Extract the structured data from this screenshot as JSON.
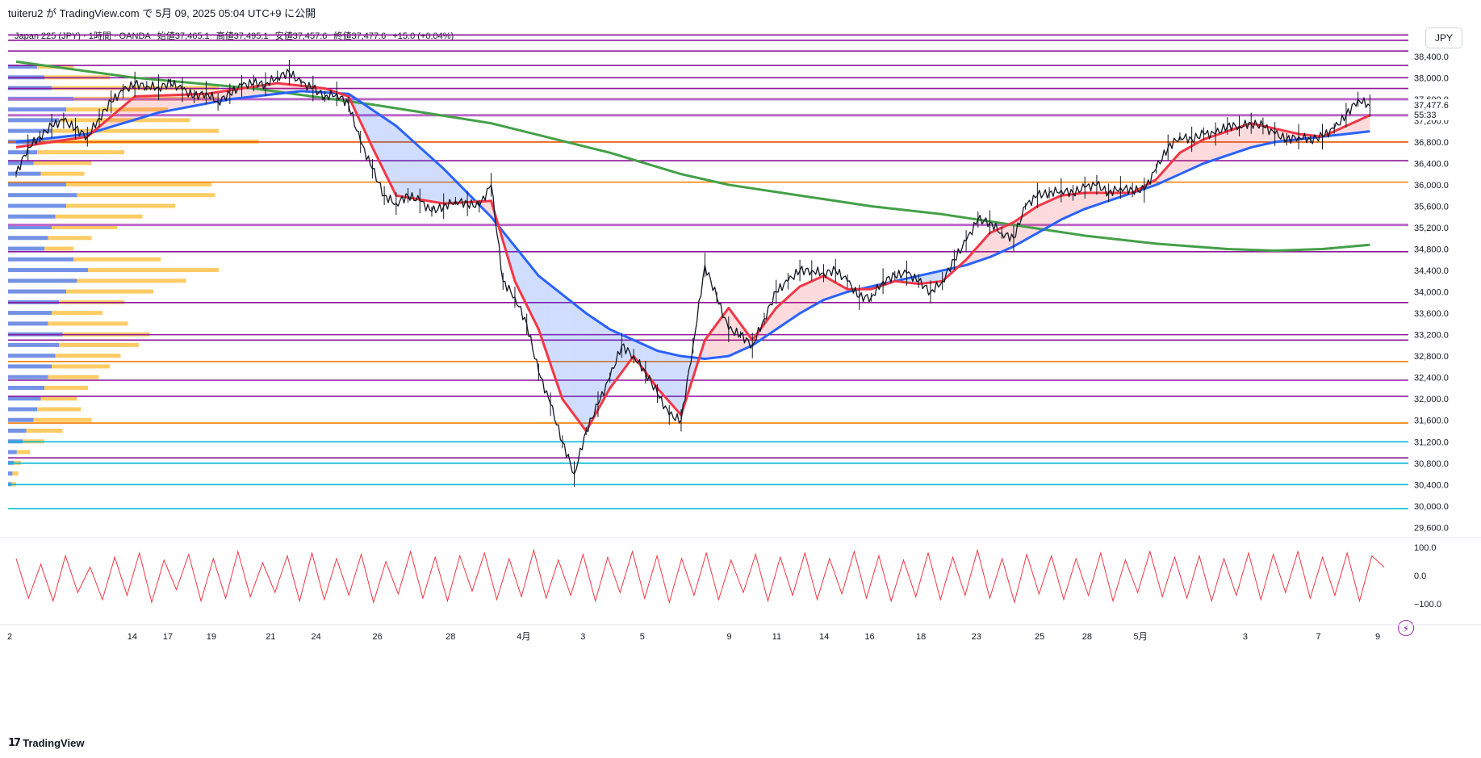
{
  "header": {
    "published": "tuiteru2 が TradingView.com で 5月 09, 2025 05:04 UTC+9 に公開",
    "symbol": "Japan 225 (JPY) · 1時間 · OANDA",
    "open": "始値37,465.1",
    "high": "高値37,495.1",
    "low": "安値37,457.6",
    "close": "終値37,477.6",
    "change": "+15.0 (+0.04%)",
    "currency": "JPY"
  },
  "price_badges": {
    "last_price": "37,477.6",
    "countdown": "55:33"
  },
  "footer": {
    "brand": "TradingView"
  },
  "colors": {
    "candle": "#131722",
    "ma_fast": "#f23645",
    "ma_slow": "#2962ff",
    "ma_long": "#43a047",
    "level_purple": "#8e1599",
    "level_orange": "#f57c00",
    "level_cyan": "#00bcd4",
    "level_red": "#e65100",
    "vp_blue": "#5b7fe0",
    "vp_orange": "#ffc24a",
    "oscillator": "#f23645"
  },
  "chart_data": {
    "type": "candlestick",
    "title": "Japan 225 (JPY) 1時間",
    "x_ticks": [
      "2",
      "14",
      "17",
      "19",
      "21",
      "24",
      "26",
      "28",
      "4月",
      "3",
      "5",
      "9",
      "11",
      "14",
      "16",
      "18",
      "23",
      "25",
      "28",
      "5月",
      "3",
      "7",
      "9"
    ],
    "y_ticks": [
      "38,400.0",
      "38,000.0",
      "37,600.0",
      "37,200.0",
      "36,800.0",
      "36,400.0",
      "36,000.0",
      "35,600.0",
      "35,200.0",
      "34,800.0",
      "34,400.0",
      "34,000.0",
      "33,600.0",
      "33,200.0",
      "32,800.0",
      "32,400.0",
      "32,000.0",
      "31,600.0",
      "31,200.0",
      "30,800.0",
      "30,400.0",
      "30,000.0",
      "29,600.0"
    ],
    "ylim": [
      29500,
      39000
    ],
    "price_series": [
      [
        0,
        36200
      ],
      [
        0.5,
        36700
      ],
      [
        1,
        36900
      ],
      [
        1.5,
        37100
      ],
      [
        2,
        37200
      ],
      [
        2.5,
        37050
      ],
      [
        3,
        36900
      ],
      [
        3.5,
        37250
      ],
      [
        4,
        37550
      ],
      [
        4.5,
        37750
      ],
      [
        5,
        37880
      ],
      [
        5.5,
        37850
      ],
      [
        6,
        37820
      ],
      [
        6.5,
        37900
      ],
      [
        7,
        37780
      ],
      [
        7.5,
        37650
      ],
      [
        8,
        37720
      ],
      [
        8.5,
        37550
      ],
      [
        9,
        37700
      ],
      [
        9.5,
        37850
      ],
      [
        10,
        37900
      ],
      [
        10.5,
        37880
      ],
      [
        11,
        38020
      ],
      [
        11.5,
        38100
      ],
      [
        12,
        37900
      ],
      [
        12.5,
        37800
      ],
      [
        13,
        37650
      ],
      [
        13.5,
        37700
      ],
      [
        14,
        37500
      ],
      [
        14.5,
        36800
      ],
      [
        15,
        36300
      ],
      [
        15.5,
        35800
      ],
      [
        16,
        35650
      ],
      [
        16.5,
        35800
      ],
      [
        17,
        35700
      ],
      [
        17.5,
        35500
      ],
      [
        18,
        35600
      ],
      [
        18.5,
        35700
      ],
      [
        19,
        35650
      ],
      [
        19.5,
        35600
      ],
      [
        20,
        36000
      ],
      [
        20.5,
        34200
      ],
      [
        21,
        33900
      ],
      [
        21.5,
        33400
      ],
      [
        22,
        32500
      ],
      [
        22.5,
        31900
      ],
      [
        23,
        31200
      ],
      [
        23.5,
        30600
      ],
      [
        24,
        31400
      ],
      [
        24.5,
        31900
      ],
      [
        25,
        32400
      ],
      [
        25.5,
        33000
      ],
      [
        26,
        32800
      ],
      [
        26.5,
        32500
      ],
      [
        27,
        32100
      ],
      [
        27.5,
        31700
      ],
      [
        28,
        31600
      ],
      [
        28.5,
        33000
      ],
      [
        29,
        34500
      ],
      [
        29.5,
        33900
      ],
      [
        30,
        33300
      ],
      [
        30.5,
        33200
      ],
      [
        31,
        33000
      ],
      [
        31.5,
        33500
      ],
      [
        32,
        34000
      ],
      [
        32.5,
        34200
      ],
      [
        33,
        34400
      ],
      [
        33.5,
        34400
      ],
      [
        34,
        34350
      ],
      [
        34.5,
        34400
      ],
      [
        35,
        34200
      ],
      [
        35.5,
        33900
      ],
      [
        36,
        33900
      ],
      [
        36.5,
        34200
      ],
      [
        37,
        34300
      ],
      [
        37.5,
        34350
      ],
      [
        38,
        34200
      ],
      [
        38.5,
        34000
      ],
      [
        39,
        34200
      ],
      [
        39.5,
        34600
      ],
      [
        40,
        34950
      ],
      [
        40.5,
        35350
      ],
      [
        41,
        35300
      ],
      [
        41.5,
        35100
      ],
      [
        42,
        35000
      ],
      [
        42.5,
        35600
      ],
      [
        43,
        35800
      ],
      [
        43.5,
        35850
      ],
      [
        44,
        35900
      ],
      [
        44.5,
        35850
      ],
      [
        45,
        35950
      ],
      [
        45.5,
        36000
      ],
      [
        46,
        35850
      ],
      [
        46.5,
        35950
      ],
      [
        47,
        35900
      ],
      [
        47.5,
        35900
      ],
      [
        48,
        36300
      ],
      [
        48.5,
        36700
      ],
      [
        49,
        36900
      ],
      [
        49.5,
        36850
      ],
      [
        50,
        36950
      ],
      [
        50.5,
        36950
      ],
      [
        51,
        37100
      ],
      [
        51.5,
        37100
      ],
      [
        52,
        37150
      ],
      [
        52.5,
        37100
      ],
      [
        53,
        36950
      ],
      [
        53.5,
        36850
      ],
      [
        54,
        36900
      ],
      [
        54.5,
        36850
      ],
      [
        55,
        36900
      ],
      [
        55.5,
        37050
      ],
      [
        56,
        37300
      ],
      [
        56.5,
        37600
      ],
      [
        57,
        37477.6
      ]
    ],
    "ma_fast": [
      [
        0,
        36700
      ],
      [
        3,
        36900
      ],
      [
        5,
        37650
      ],
      [
        8,
        37700
      ],
      [
        11,
        37900
      ],
      [
        13,
        37800
      ],
      [
        14,
        37650
      ],
      [
        15,
        36700
      ],
      [
        16,
        35800
      ],
      [
        18,
        35650
      ],
      [
        20,
        35700
      ],
      [
        21,
        34200
      ],
      [
        22,
        33300
      ],
      [
        23,
        32000
      ],
      [
        24,
        31400
      ],
      [
        25,
        32200
      ],
      [
        26,
        32800
      ],
      [
        27,
        32200
      ],
      [
        28,
        31700
      ],
      [
        29,
        33100
      ],
      [
        30,
        33700
      ],
      [
        31,
        33100
      ],
      [
        32,
        33700
      ],
      [
        33,
        34100
      ],
      [
        34,
        34300
      ],
      [
        35,
        34050
      ],
      [
        36,
        34050
      ],
      [
        37,
        34200
      ],
      [
        38,
        34150
      ],
      [
        39,
        34200
      ],
      [
        40,
        34600
      ],
      [
        41,
        35100
      ],
      [
        42,
        35300
      ],
      [
        43,
        35600
      ],
      [
        44,
        35800
      ],
      [
        45,
        35850
      ],
      [
        46,
        35850
      ],
      [
        47,
        35850
      ],
      [
        48,
        36100
      ],
      [
        49,
        36600
      ],
      [
        50,
        36850
      ],
      [
        51,
        37000
      ],
      [
        52,
        37150
      ],
      [
        53,
        37050
      ],
      [
        54,
        36950
      ],
      [
        55,
        36900
      ],
      [
        56,
        37100
      ],
      [
        57,
        37300
      ]
    ],
    "ma_slow": [
      [
        0,
        36800
      ],
      [
        3,
        36950
      ],
      [
        6,
        37350
      ],
      [
        9,
        37600
      ],
      [
        12,
        37750
      ],
      [
        14,
        37700
      ],
      [
        16,
        37100
      ],
      [
        18,
        36300
      ],
      [
        20,
        35400
      ],
      [
        22,
        34300
      ],
      [
        24,
        33600
      ],
      [
        25,
        33300
      ],
      [
        26,
        33100
      ],
      [
        27,
        32900
      ],
      [
        28,
        32800
      ],
      [
        29,
        32750
      ],
      [
        30,
        32800
      ],
      [
        31,
        33000
      ],
      [
        32,
        33300
      ],
      [
        33,
        33600
      ],
      [
        34,
        33850
      ],
      [
        35,
        34000
      ],
      [
        36,
        34100
      ],
      [
        37,
        34200
      ],
      [
        38,
        34300
      ],
      [
        39,
        34400
      ],
      [
        40,
        34500
      ],
      [
        41,
        34650
      ],
      [
        42,
        34850
      ],
      [
        43,
        35100
      ],
      [
        44,
        35350
      ],
      [
        45,
        35550
      ],
      [
        46,
        35700
      ],
      [
        47,
        35850
      ],
      [
        48,
        36000
      ],
      [
        49,
        36200
      ],
      [
        50,
        36400
      ],
      [
        51,
        36550
      ],
      [
        52,
        36700
      ],
      [
        53,
        36800
      ],
      [
        54,
        36850
      ],
      [
        55,
        36900
      ],
      [
        56,
        36950
      ],
      [
        57,
        37000
      ]
    ],
    "ma_long": [
      [
        0,
        38300
      ],
      [
        5,
        38000
      ],
      [
        10,
        37800
      ],
      [
        15,
        37500
      ],
      [
        20,
        37150
      ],
      [
        25,
        36600
      ],
      [
        28,
        36200
      ],
      [
        30,
        36000
      ],
      [
        33,
        35800
      ],
      [
        36,
        35600
      ],
      [
        39,
        35450
      ],
      [
        42,
        35250
      ],
      [
        45,
        35050
      ],
      [
        48,
        34900
      ],
      [
        51,
        34800
      ],
      [
        53,
        34770
      ],
      [
        55,
        34800
      ],
      [
        57,
        34880
      ]
    ],
    "horizontal_levels": [
      {
        "price": 38800,
        "color": "purple"
      },
      {
        "price": 38700,
        "color": "purple"
      },
      {
        "price": 38500,
        "color": "purple"
      },
      {
        "price": 38230,
        "color": "purple"
      },
      {
        "price": 38000,
        "color": "purple"
      },
      {
        "price": 37800,
        "color": "purple"
      },
      {
        "price": 37600,
        "color": "violet"
      },
      {
        "price": 37300,
        "color": "violet"
      },
      {
        "price": 36800,
        "color": "red"
      },
      {
        "price": 36450,
        "color": "purple"
      },
      {
        "price": 36050,
        "color": "orange"
      },
      {
        "price": 35250,
        "color": "violet"
      },
      {
        "price": 34750,
        "color": "purple"
      },
      {
        "price": 33800,
        "color": "purple"
      },
      {
        "price": 33200,
        "color": "purple"
      },
      {
        "price": 33100,
        "color": "purple"
      },
      {
        "price": 32700,
        "color": "orange"
      },
      {
        "price": 32350,
        "color": "purple"
      },
      {
        "price": 32050,
        "color": "purple"
      },
      {
        "price": 31550,
        "color": "orange"
      },
      {
        "price": 31200,
        "color": "cyan"
      },
      {
        "price": 30900,
        "color": "purple"
      },
      {
        "price": 30800,
        "color": "cyan"
      },
      {
        "price": 30400,
        "color": "cyan"
      },
      {
        "price": 29950,
        "color": "cyan"
      }
    ],
    "volume_profile": [
      [
        38200,
        40,
        50
      ],
      [
        38000,
        50,
        90
      ],
      [
        37800,
        60,
        230
      ],
      [
        37600,
        90,
        200
      ],
      [
        37400,
        80,
        140
      ],
      [
        37200,
        70,
        180
      ],
      [
        37000,
        60,
        230
      ],
      [
        36800,
        45,
        300
      ],
      [
        36600,
        40,
        120
      ],
      [
        36400,
        35,
        80
      ],
      [
        36200,
        45,
        60
      ],
      [
        36000,
        80,
        200
      ],
      [
        35800,
        95,
        190
      ],
      [
        35600,
        80,
        150
      ],
      [
        35400,
        65,
        120
      ],
      [
        35200,
        60,
        90
      ],
      [
        35000,
        55,
        60
      ],
      [
        34800,
        50,
        40
      ],
      [
        34600,
        90,
        120
      ],
      [
        34400,
        110,
        180
      ],
      [
        34200,
        95,
        150
      ],
      [
        34000,
        80,
        120
      ],
      [
        33800,
        70,
        90
      ],
      [
        33600,
        60,
        70
      ],
      [
        33400,
        55,
        110
      ],
      [
        33200,
        75,
        120
      ],
      [
        33000,
        70,
        110
      ],
      [
        32800,
        65,
        90
      ],
      [
        32600,
        60,
        80
      ],
      [
        32400,
        55,
        70
      ],
      [
        32200,
        50,
        60
      ],
      [
        32000,
        45,
        50
      ],
      [
        31800,
        40,
        60
      ],
      [
        31600,
        35,
        80
      ],
      [
        31400,
        25,
        50
      ],
      [
        31200,
        20,
        30
      ],
      [
        31000,
        12,
        18
      ],
      [
        30800,
        8,
        10
      ],
      [
        30600,
        6,
        8
      ],
      [
        30400,
        5,
        6
      ]
    ],
    "oscillator": {
      "ylim": [
        -100,
        100
      ],
      "ticks": [
        "100.0",
        "0.0",
        "−100.0"
      ],
      "values": [
        60,
        -80,
        40,
        -90,
        70,
        -60,
        30,
        -85,
        65,
        -70,
        80,
        -95,
        55,
        -50,
        75,
        -90,
        60,
        -80,
        85,
        -75,
        45,
        -60,
        70,
        -90,
        80,
        -85,
        60,
        -70,
        75,
        -95,
        50,
        -65,
        85,
        -80,
        65,
        -90,
        70,
        -55,
        80,
        -85,
        60,
        -75,
        90,
        -80,
        55,
        -70,
        75,
        -90,
        65,
        -60,
        85,
        -80,
        70,
        -95,
        60,
        -70,
        80,
        -85,
        55,
        -60,
        75,
        -90,
        65,
        -70,
        80,
        -85,
        60,
        -65,
        85,
        -80,
        70,
        -90,
        55,
        -75,
        80,
        -85,
        65,
        -70,
        90,
        -80,
        60,
        -95,
        75,
        -65,
        70,
        -85,
        60,
        -70,
        80,
        -90,
        55,
        -60,
        85,
        -75,
        65,
        -80,
        70,
        -90,
        60,
        -70,
        80,
        -85,
        75,
        -60,
        85,
        -80,
        65,
        -70,
        80,
        -90,
        70,
        30
      ]
    }
  }
}
